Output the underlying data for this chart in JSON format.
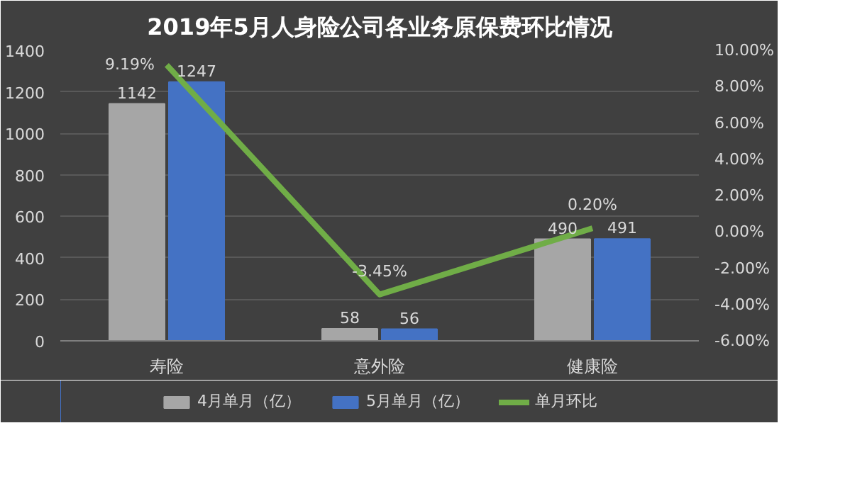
{
  "chart_data": {
    "type": "bar",
    "title": "2019年5月人身险公司各业务原保费环比情况",
    "categories": [
      "寿险",
      "意外险",
      "健康险"
    ],
    "series": [
      {
        "name": "4月单月（亿）",
        "color": "#a6a6a6",
        "values": [
          1142,
          58,
          490
        ]
      },
      {
        "name": "5月单月（亿）",
        "color": "#4472c4",
        "values": [
          1247,
          56,
          491
        ]
      },
      {
        "name": "单月环比",
        "type": "line",
        "axis": "y2",
        "color": "#70ad47",
        "values": [
          9.19,
          -3.45,
          0.2
        ],
        "value_labels": [
          "9.19%",
          "-3.45%",
          "0.20%"
        ]
      }
    ],
    "ylim": [
      0,
      1400
    ],
    "yticks": [
      0,
      200,
      400,
      600,
      800,
      1000,
      1200,
      1400
    ],
    "y2lim": [
      -6,
      10
    ],
    "y2ticks": [
      {
        "value": -6,
        "label": "-6.00%"
      },
      {
        "value": -4,
        "label": "-4.00%"
      },
      {
        "value": -2,
        "label": "-2.00%"
      },
      {
        "value": 0,
        "label": "0.00%"
      },
      {
        "value": 2,
        "label": "2.00%"
      },
      {
        "value": 4,
        "label": "4.00%"
      },
      {
        "value": 6,
        "label": "6.00%"
      },
      {
        "value": 8,
        "label": "8.00%"
      },
      {
        "value": 10,
        "label": "10.00%"
      }
    ],
    "grid": "y",
    "legend": "bottom",
    "data_labels": true,
    "marker": "none"
  }
}
